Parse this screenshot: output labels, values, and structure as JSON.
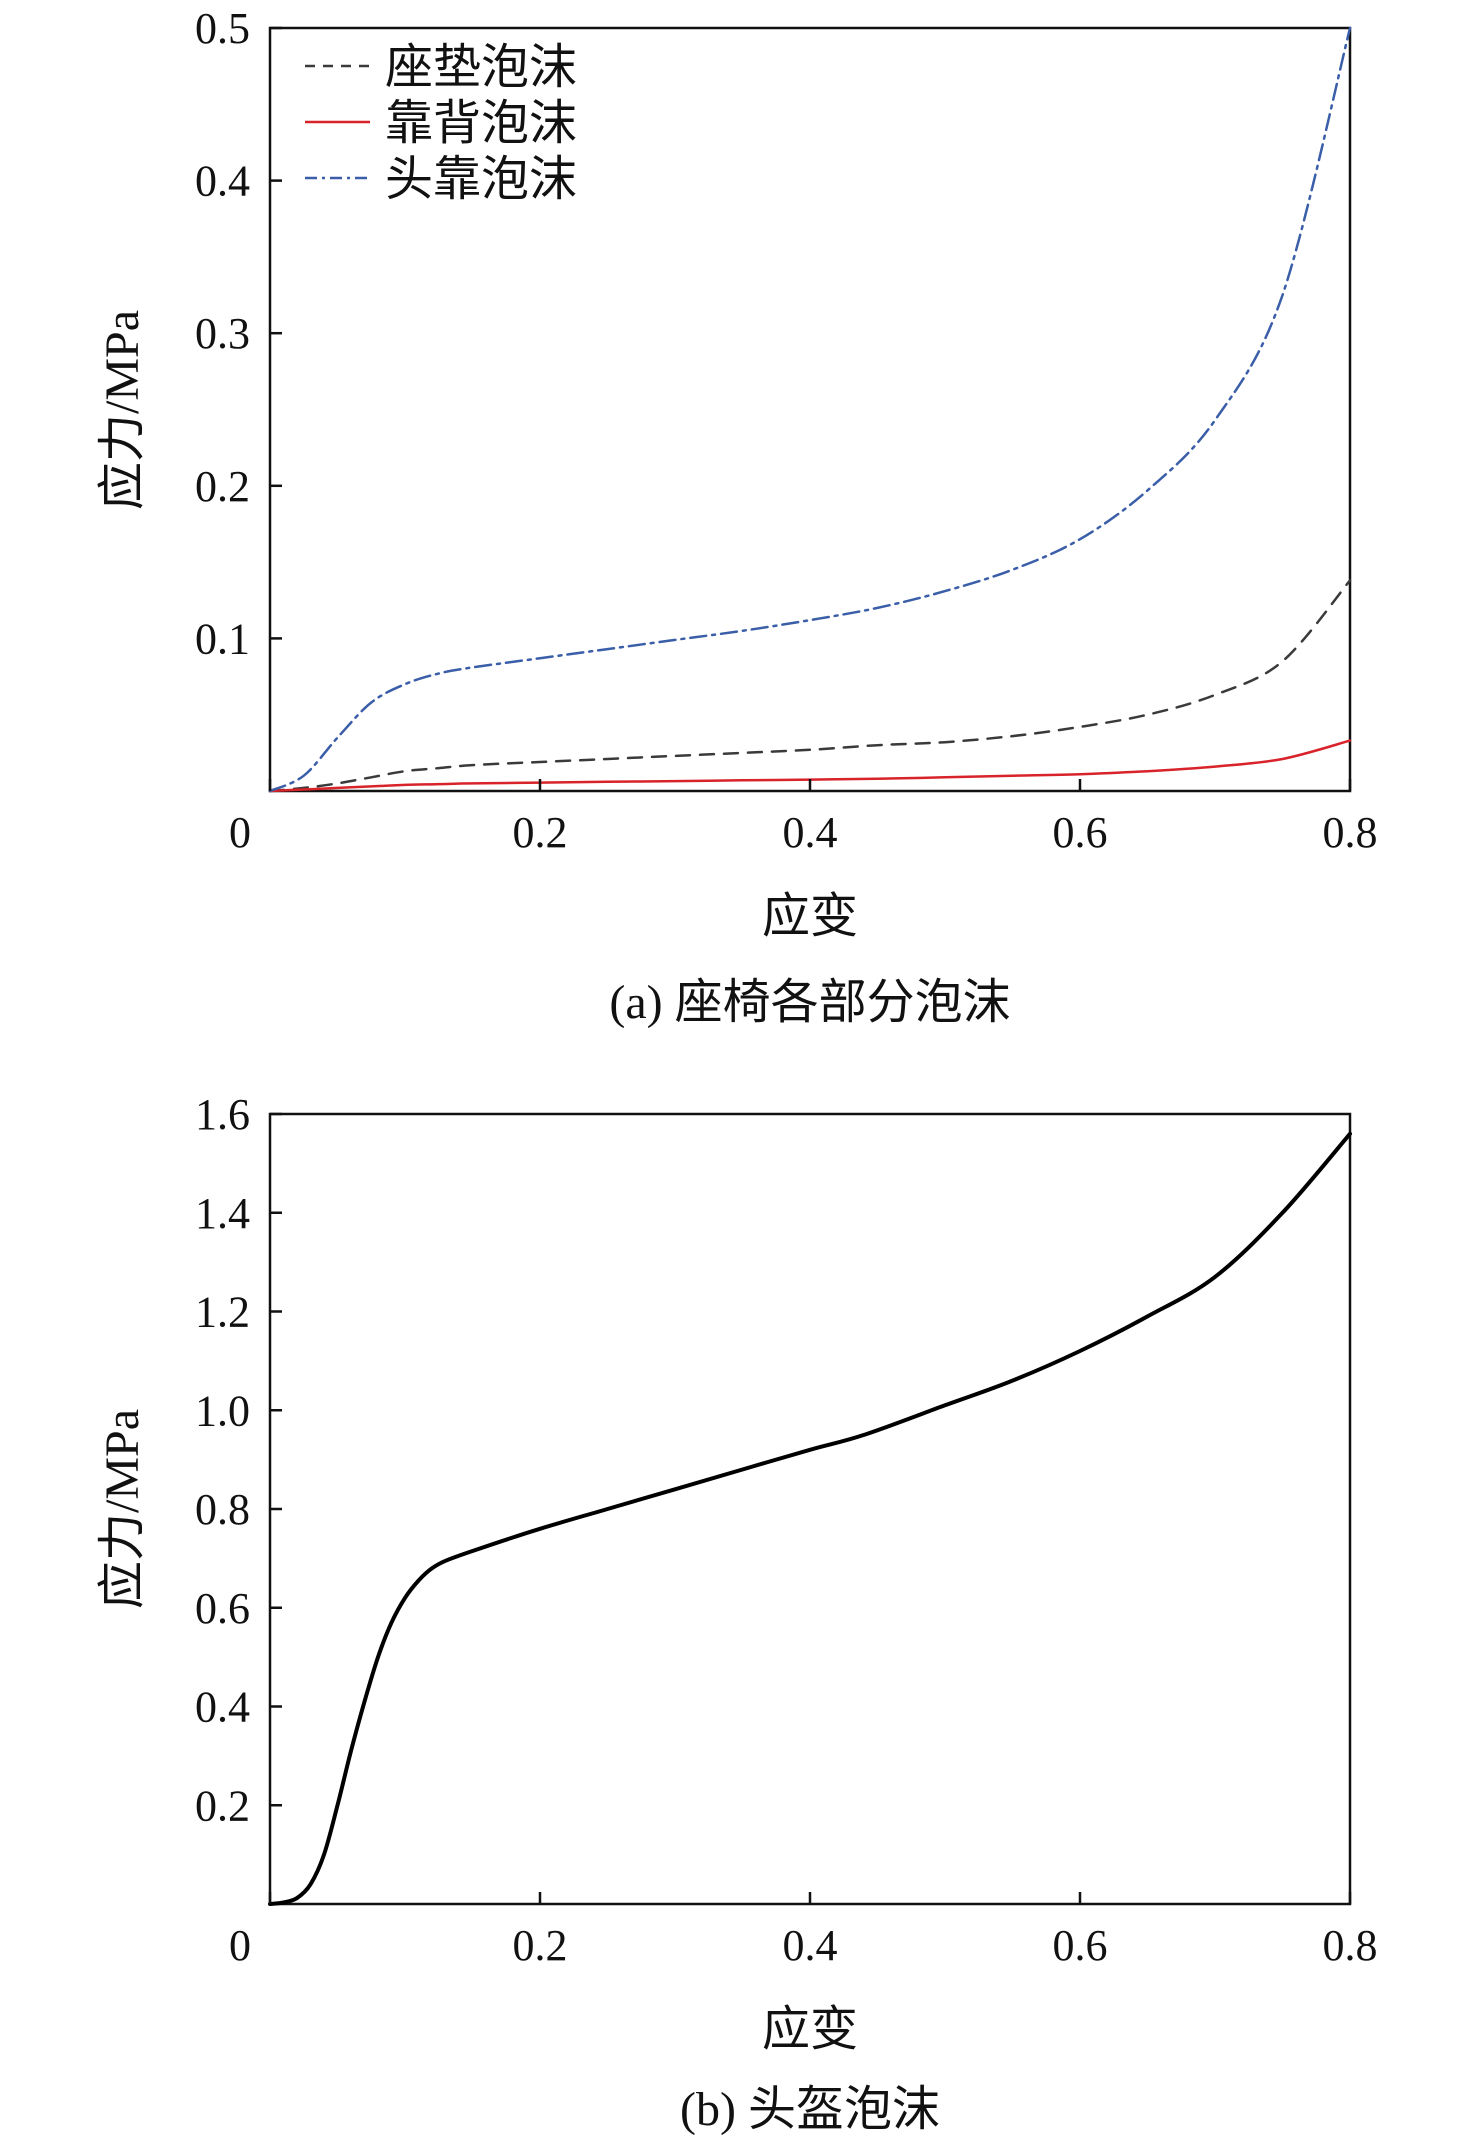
{
  "chart_data": [
    {
      "type": "line",
      "caption": "(a) 座椅各部分泡沫",
      "xlabel": "应变",
      "ylabel": "应力/MPa",
      "xlim": [
        0,
        0.8
      ],
      "ylim": [
        0,
        0.5
      ],
      "xticks": [
        "0",
        "0.2",
        "0.4",
        "0.6",
        "0.8"
      ],
      "yticks": [
        "0.1",
        "0.2",
        "0.3",
        "0.4",
        "0.5"
      ],
      "xtick_values": [
        0,
        0.2,
        0.4,
        0.6,
        0.8
      ],
      "ytick_values": [
        0.1,
        0.2,
        0.3,
        0.4,
        0.5
      ],
      "legend_position": "top-left",
      "x": [
        0,
        0.025,
        0.05,
        0.075,
        0.1,
        0.125,
        0.15,
        0.2,
        0.25,
        0.3,
        0.35,
        0.4,
        0.45,
        0.5,
        0.55,
        0.6,
        0.65,
        0.7,
        0.75,
        0.8
      ],
      "series": [
        {
          "name": "座垫泡沫",
          "color": "#3a3a3a",
          "dash": "dashed",
          "values": [
            0,
            0.002,
            0.005,
            0.009,
            0.013,
            0.015,
            0.017,
            0.019,
            0.021,
            0.023,
            0.025,
            0.027,
            0.03,
            0.032,
            0.036,
            0.042,
            0.05,
            0.063,
            0.085,
            0.138
          ]
        },
        {
          "name": "靠背泡沫",
          "color": "#d8232a",
          "dash": "solid",
          "values": [
            0,
            0.001,
            0.002,
            0.003,
            0.004,
            0.0045,
            0.005,
            0.0055,
            0.006,
            0.0065,
            0.007,
            0.0075,
            0.008,
            0.009,
            0.01,
            0.011,
            0.013,
            0.016,
            0.021,
            0.033
          ]
        },
        {
          "name": "头靠泡沫",
          "color": "#3a5ea8",
          "dash": "dashdot",
          "values": [
            0,
            0.01,
            0.035,
            0.058,
            0.07,
            0.077,
            0.081,
            0.087,
            0.093,
            0.099,
            0.105,
            0.112,
            0.12,
            0.131,
            0.145,
            0.165,
            0.197,
            0.243,
            0.325,
            0.5
          ]
        }
      ]
    },
    {
      "type": "line",
      "caption": "(b) 头盔泡沫",
      "xlabel": "应变",
      "ylabel": "应力/MPa",
      "xlim": [
        0,
        0.8
      ],
      "ylim": [
        0,
        1.6
      ],
      "xticks": [
        "0",
        "0.2",
        "0.4",
        "0.6",
        "0.8"
      ],
      "yticks": [
        "0.2",
        "0.4",
        "0.6",
        "0.8",
        "1.0",
        "1.2",
        "1.4",
        "1.6"
      ],
      "xtick_values": [
        0,
        0.2,
        0.4,
        0.6,
        0.8
      ],
      "ytick_values": [
        0.2,
        0.4,
        0.6,
        0.8,
        1.0,
        1.2,
        1.4,
        1.6
      ],
      "x": [
        0,
        0.01,
        0.02,
        0.03,
        0.04,
        0.05,
        0.06,
        0.07,
        0.08,
        0.09,
        0.1,
        0.11,
        0.12,
        0.13,
        0.15,
        0.2,
        0.25,
        0.3,
        0.35,
        0.4,
        0.44,
        0.5,
        0.55,
        0.6,
        0.65,
        0.7,
        0.75,
        0.8
      ],
      "series": [
        {
          "color": "#000000",
          "dash": "solid",
          "values": [
            0,
            0.003,
            0.012,
            0.04,
            0.1,
            0.2,
            0.31,
            0.41,
            0.5,
            0.57,
            0.62,
            0.655,
            0.68,
            0.695,
            0.715,
            0.76,
            0.8,
            0.84,
            0.88,
            0.92,
            0.95,
            1.01,
            1.06,
            1.12,
            1.19,
            1.27,
            1.4,
            1.56
          ]
        }
      ]
    }
  ]
}
